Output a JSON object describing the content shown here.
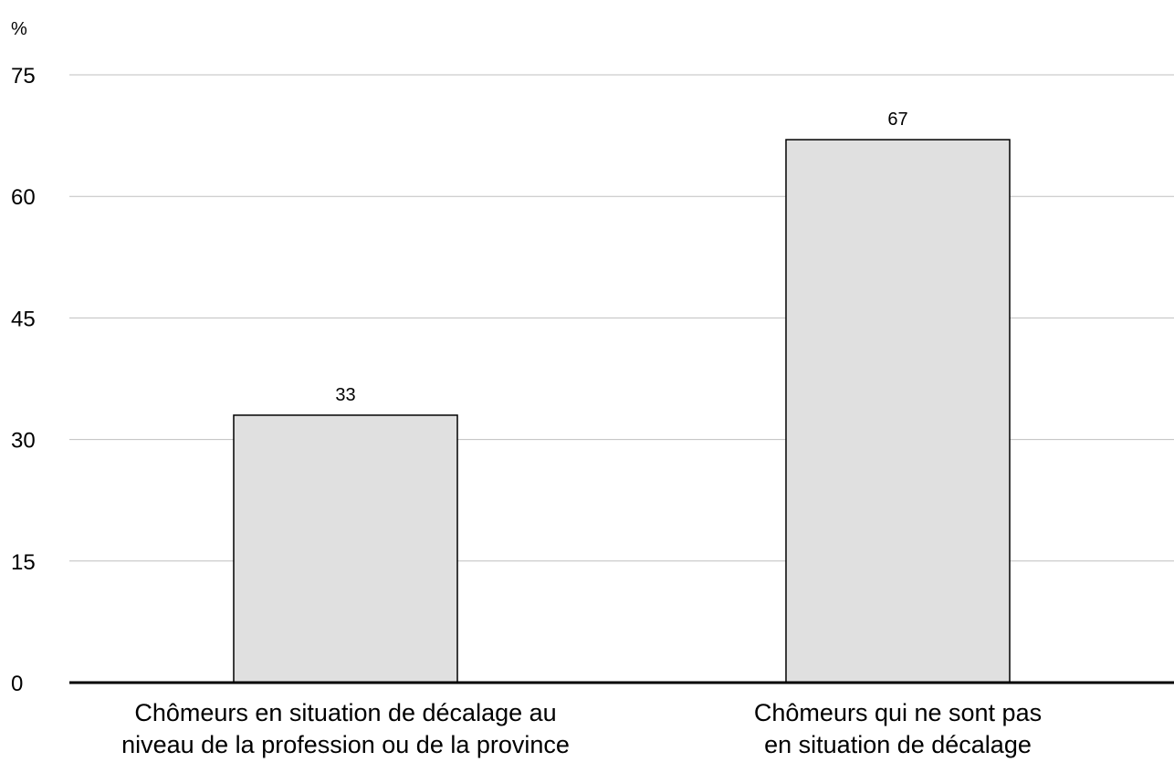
{
  "chart_data": {
    "type": "bar",
    "unit_label": "%",
    "categories": [
      [
        "Chômeurs en situation de décalage au",
        "niveau de la profession ou de la province"
      ],
      [
        "Chômeurs qui ne sont pas",
        "en situation de décalage"
      ]
    ],
    "values": [
      33,
      67
    ],
    "data_labels": [
      "33",
      "67"
    ],
    "ylim": [
      0,
      75
    ],
    "yticks": [
      0,
      15,
      30,
      45,
      60,
      75
    ],
    "ytick_labels": [
      "0",
      "15",
      "30",
      "45",
      "60",
      "75"
    ],
    "grid": true,
    "bar_color": "#e0e0e0",
    "bar_edge_color": "#000000",
    "grid_color": "#bfbfbf"
  }
}
